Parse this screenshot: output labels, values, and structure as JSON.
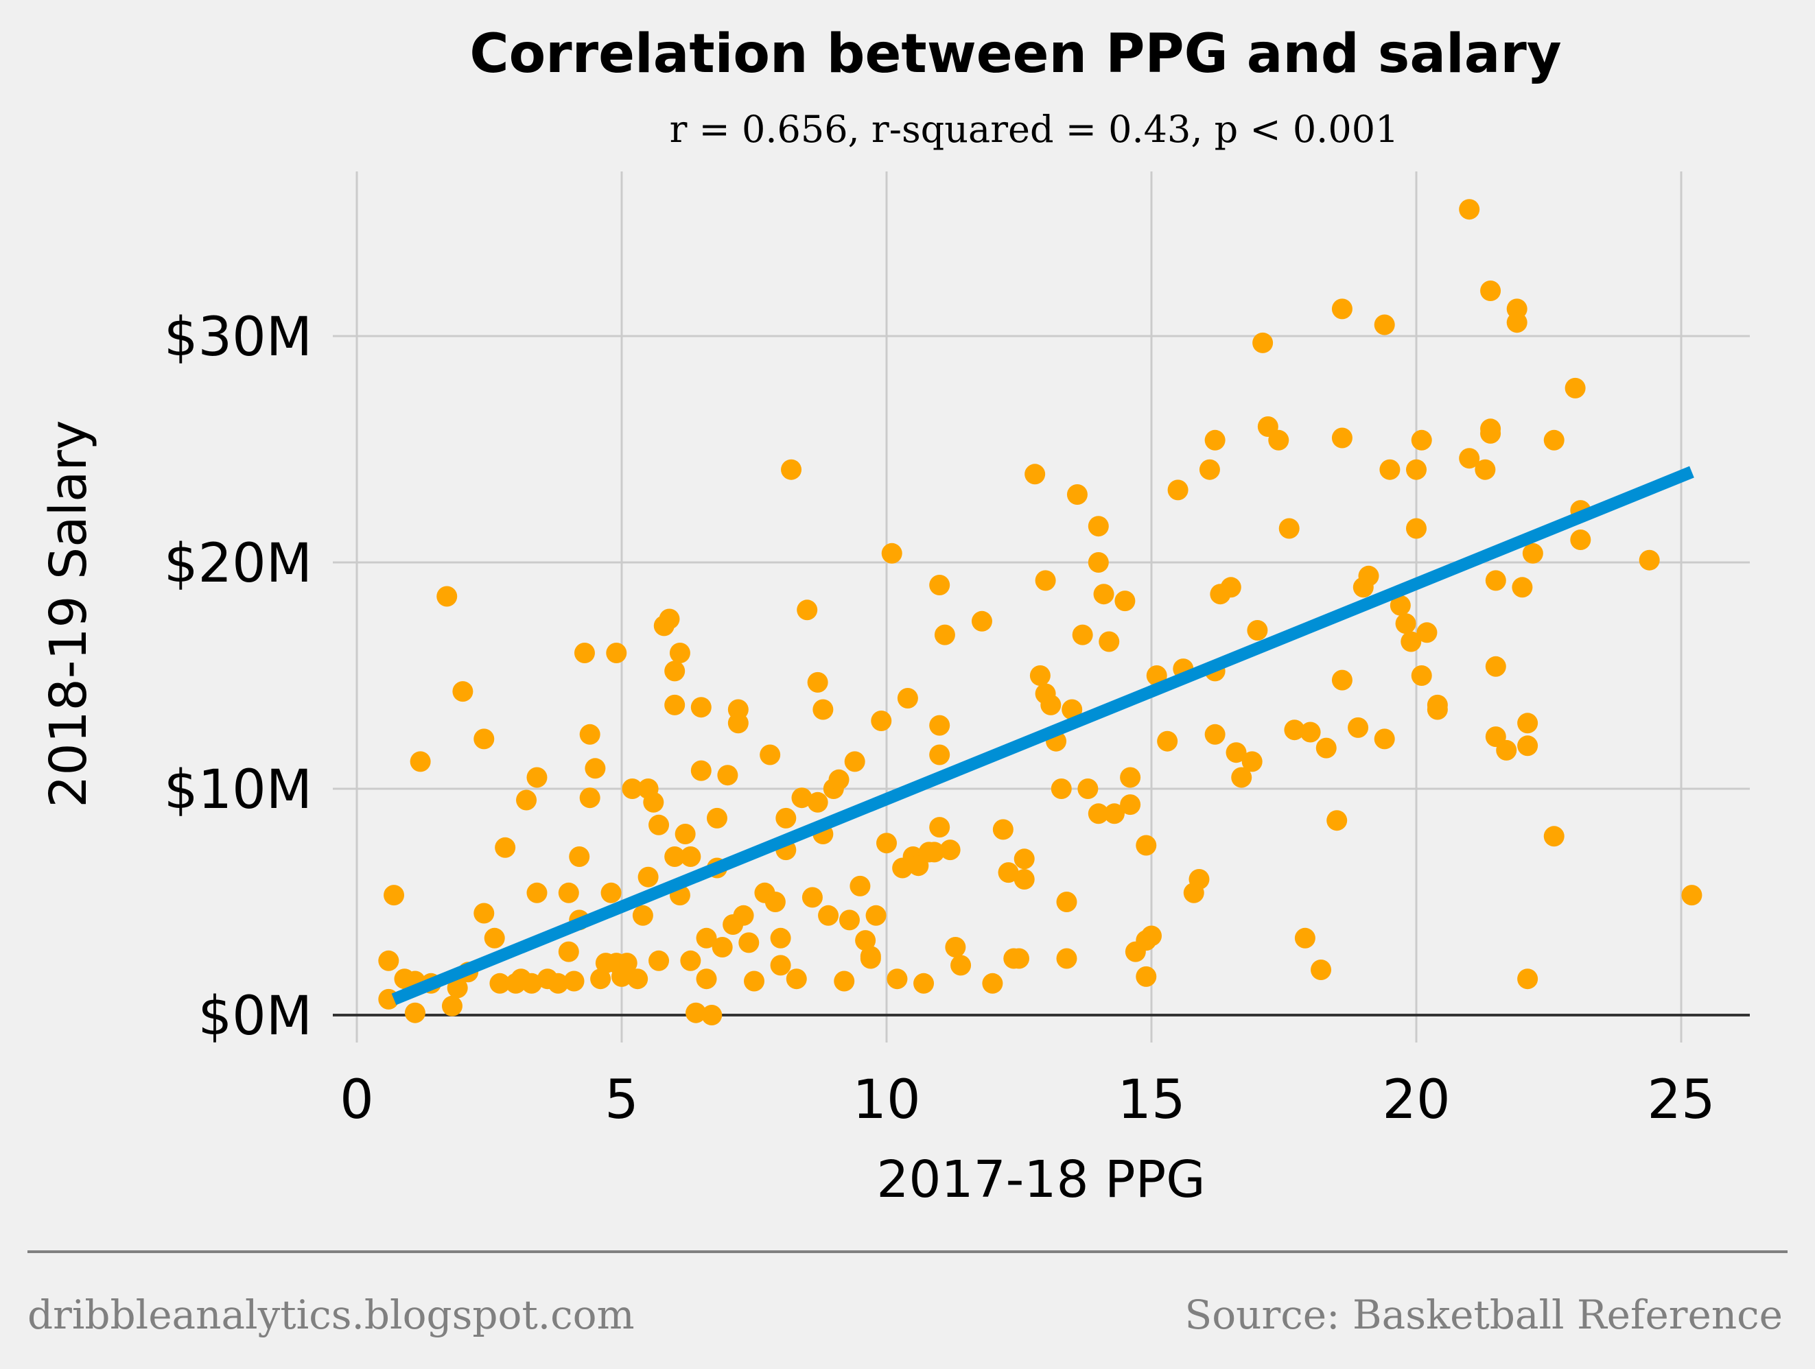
{
  "chart_data": {
    "type": "scatter",
    "title": "Correlation between PPG and salary",
    "subtitle": "r = 0.656, r-squared = 0.43, p < 0.001",
    "xlabel": "2017-18 PPG",
    "ylabel": "2018-19 Salary",
    "xlim": [
      -0.5,
      26.3
    ],
    "ylim": [
      -1.8,
      37
    ],
    "xticks": [
      0,
      5,
      10,
      15,
      20,
      25
    ],
    "xtick_labels": [
      "0",
      "5",
      "10",
      "15",
      "20",
      "25"
    ],
    "yticks": [
      0,
      10,
      20,
      30
    ],
    "ytick_labels": [
      "$0M",
      "$10M",
      "$20M",
      "$30M"
    ],
    "grid": true,
    "colors": {
      "points": "#ffa500",
      "fit_line": "#008fd5",
      "background": "#f0f0f0",
      "grid": "#cbcbcb",
      "footer": "#808080"
    },
    "fit_line": {
      "x": [
        0.7,
        25.2
      ],
      "y": [
        0.7,
        24.0
      ]
    },
    "points": [
      [
        0.6,
        0.7
      ],
      [
        0.6,
        2.4
      ],
      [
        0.7,
        5.3
      ],
      [
        0.9,
        1.6
      ],
      [
        1.1,
        1.5
      ],
      [
        1.1,
        0.1
      ],
      [
        1.2,
        11.2
      ],
      [
        1.4,
        1.4
      ],
      [
        1.7,
        18.5
      ],
      [
        1.8,
        0.4
      ],
      [
        1.9,
        1.2
      ],
      [
        2.0,
        14.3
      ],
      [
        2.1,
        1.9
      ],
      [
        2.4,
        12.2
      ],
      [
        2.4,
        4.5
      ],
      [
        2.6,
        3.4
      ],
      [
        2.7,
        1.4
      ],
      [
        2.8,
        7.4
      ],
      [
        3.0,
        1.4
      ],
      [
        3.1,
        1.6
      ],
      [
        3.2,
        9.5
      ],
      [
        3.3,
        1.4
      ],
      [
        3.4,
        10.5
      ],
      [
        3.4,
        5.4
      ],
      [
        3.6,
        1.6
      ],
      [
        3.8,
        1.4
      ],
      [
        4.0,
        5.4
      ],
      [
        4.0,
        2.8
      ],
      [
        4.1,
        1.5
      ],
      [
        4.2,
        7.0
      ],
      [
        4.2,
        4.2
      ],
      [
        4.3,
        16.0
      ],
      [
        4.4,
        12.4
      ],
      [
        4.4,
        9.6
      ],
      [
        4.5,
        10.9
      ],
      [
        4.6,
        1.6
      ],
      [
        4.7,
        2.3
      ],
      [
        4.8,
        5.4
      ],
      [
        4.9,
        16.0
      ],
      [
        4.9,
        2.3
      ],
      [
        5.0,
        1.7
      ],
      [
        5.1,
        2.3
      ],
      [
        5.2,
        10.0
      ],
      [
        5.3,
        1.6
      ],
      [
        5.4,
        4.4
      ],
      [
        5.5,
        6.1
      ],
      [
        5.5,
        10.0
      ],
      [
        5.6,
        9.4
      ],
      [
        5.7,
        8.4
      ],
      [
        5.7,
        2.4
      ],
      [
        5.8,
        17.2
      ],
      [
        5.9,
        17.5
      ],
      [
        6.0,
        15.2
      ],
      [
        6.0,
        13.7
      ],
      [
        6.1,
        16.0
      ],
      [
        6.1,
        5.3
      ],
      [
        6.2,
        8.0
      ],
      [
        6.0,
        7.0
      ],
      [
        6.3,
        7.0
      ],
      [
        6.3,
        2.4
      ],
      [
        6.4,
        0.1
      ],
      [
        6.5,
        13.6
      ],
      [
        6.5,
        10.8
      ],
      [
        6.6,
        1.6
      ],
      [
        6.6,
        3.4
      ],
      [
        6.7,
        0.0
      ],
      [
        6.8,
        8.7
      ],
      [
        6.8,
        6.5
      ],
      [
        6.9,
        3.0
      ],
      [
        7.0,
        10.6
      ],
      [
        7.1,
        4.0
      ],
      [
        7.2,
        13.5
      ],
      [
        7.2,
        12.9
      ],
      [
        7.3,
        4.4
      ],
      [
        7.4,
        3.2
      ],
      [
        7.5,
        1.5
      ],
      [
        7.7,
        5.4
      ],
      [
        7.8,
        11.5
      ],
      [
        7.9,
        5.0
      ],
      [
        8.0,
        3.4
      ],
      [
        8.0,
        2.2
      ],
      [
        8.1,
        8.7
      ],
      [
        8.1,
        7.3
      ],
      [
        8.2,
        24.1
      ],
      [
        8.3,
        1.6
      ],
      [
        8.4,
        9.6
      ],
      [
        8.5,
        17.9
      ],
      [
        8.6,
        5.2
      ],
      [
        8.7,
        9.4
      ],
      [
        8.7,
        14.7
      ],
      [
        8.8,
        13.5
      ],
      [
        8.8,
        8.0
      ],
      [
        8.9,
        4.4
      ],
      [
        9.0,
        10.0
      ],
      [
        9.1,
        10.4
      ],
      [
        9.2,
        1.5
      ],
      [
        9.3,
        4.2
      ],
      [
        9.4,
        11.2
      ],
      [
        9.5,
        5.7
      ],
      [
        9.6,
        3.3
      ],
      [
        9.7,
        2.5
      ],
      [
        9.7,
        2.6
      ],
      [
        9.8,
        4.4
      ],
      [
        9.9,
        13.0
      ],
      [
        10.0,
        7.6
      ],
      [
        10.1,
        20.4
      ],
      [
        10.2,
        1.6
      ],
      [
        10.3,
        6.5
      ],
      [
        10.4,
        14.0
      ],
      [
        10.5,
        7.0
      ],
      [
        10.6,
        6.6
      ],
      [
        10.7,
        1.4
      ],
      [
        10.8,
        7.2
      ],
      [
        10.9,
        7.2
      ],
      [
        11.0,
        19.0
      ],
      [
        11.0,
        12.8
      ],
      [
        11.0,
        11.5
      ],
      [
        11.0,
        8.3
      ],
      [
        11.1,
        16.8
      ],
      [
        11.2,
        7.3
      ],
      [
        11.3,
        3.0
      ],
      [
        11.4,
        2.2
      ],
      [
        11.8,
        17.4
      ],
      [
        12.0,
        1.4
      ],
      [
        12.3,
        6.3
      ],
      [
        12.4,
        2.5
      ],
      [
        12.5,
        2.5
      ],
      [
        12.2,
        8.2
      ],
      [
        12.6,
        6.0
      ],
      [
        12.6,
        6.9
      ],
      [
        12.8,
        23.9
      ],
      [
        12.9,
        15.0
      ],
      [
        13.0,
        19.2
      ],
      [
        13.0,
        14.2
      ],
      [
        13.1,
        13.7
      ],
      [
        13.2,
        12.1
      ],
      [
        13.3,
        10.0
      ],
      [
        13.4,
        5.0
      ],
      [
        13.4,
        2.5
      ],
      [
        13.5,
        13.5
      ],
      [
        13.6,
        23.0
      ],
      [
        13.7,
        16.8
      ],
      [
        13.8,
        10.0
      ],
      [
        14.0,
        21.6
      ],
      [
        14.0,
        20.0
      ],
      [
        14.1,
        18.6
      ],
      [
        14.2,
        16.5
      ],
      [
        14.3,
        8.9
      ],
      [
        14.0,
        8.9
      ],
      [
        14.5,
        18.3
      ],
      [
        14.6,
        9.3
      ],
      [
        14.6,
        10.5
      ],
      [
        14.7,
        2.8
      ],
      [
        14.9,
        3.3
      ],
      [
        15.0,
        3.5
      ],
      [
        14.9,
        1.7
      ],
      [
        14.9,
        7.5
      ],
      [
        15.1,
        15.0
      ],
      [
        15.3,
        12.1
      ],
      [
        15.5,
        23.2
      ],
      [
        15.6,
        15.3
      ],
      [
        15.8,
        5.4
      ],
      [
        15.9,
        6.0
      ],
      [
        16.1,
        24.1
      ],
      [
        16.2,
        25.4
      ],
      [
        16.2,
        15.2
      ],
      [
        16.2,
        12.4
      ],
      [
        16.3,
        18.6
      ],
      [
        16.5,
        18.9
      ],
      [
        16.6,
        11.6
      ],
      [
        16.7,
        10.5
      ],
      [
        16.9,
        11.2
      ],
      [
        17.0,
        17.0
      ],
      [
        17.1,
        29.7
      ],
      [
        17.2,
        26.0
      ],
      [
        17.4,
        25.4
      ],
      [
        17.6,
        21.5
      ],
      [
        17.7,
        12.6
      ],
      [
        17.9,
        3.4
      ],
      [
        18.2,
        2.0
      ],
      [
        18.0,
        12.5
      ],
      [
        18.3,
        11.8
      ],
      [
        18.5,
        8.6
      ],
      [
        18.6,
        31.2
      ],
      [
        18.6,
        25.5
      ],
      [
        18.9,
        12.7
      ],
      [
        19.0,
        18.9
      ],
      [
        19.1,
        19.4
      ],
      [
        19.4,
        30.5
      ],
      [
        19.4,
        12.2
      ],
      [
        19.5,
        24.1
      ],
      [
        19.7,
        18.1
      ],
      [
        19.8,
        17.3
      ],
      [
        19.9,
        16.5
      ],
      [
        20.0,
        24.1
      ],
      [
        20.0,
        21.5
      ],
      [
        20.1,
        25.4
      ],
      [
        20.1,
        15.0
      ],
      [
        20.2,
        16.9
      ],
      [
        20.4,
        13.7
      ],
      [
        20.4,
        13.5
      ],
      [
        18.6,
        14.8
      ],
      [
        21.0,
        24.6
      ],
      [
        21.0,
        35.6
      ],
      [
        21.3,
        24.1
      ],
      [
        21.4,
        25.9
      ],
      [
        21.5,
        19.2
      ],
      [
        21.5,
        15.4
      ],
      [
        21.5,
        12.3
      ],
      [
        21.7,
        11.7
      ],
      [
        22.0,
        18.9
      ],
      [
        22.1,
        1.6
      ],
      [
        22.1,
        12.9
      ],
      [
        21.4,
        32.0
      ],
      [
        21.4,
        25.7
      ],
      [
        21.9,
        31.2
      ],
      [
        21.9,
        30.6
      ],
      [
        22.1,
        11.9
      ],
      [
        22.2,
        20.4
      ],
      [
        22.6,
        25.4
      ],
      [
        22.6,
        7.9
      ],
      [
        23.0,
        27.7
      ],
      [
        23.1,
        22.3
      ],
      [
        23.1,
        21.0
      ],
      [
        24.4,
        20.1
      ],
      [
        25.2,
        5.3
      ]
    ]
  },
  "footer": {
    "left": "dribbleanalytics.blogspot.com",
    "right": "Source: Basketball Reference"
  }
}
